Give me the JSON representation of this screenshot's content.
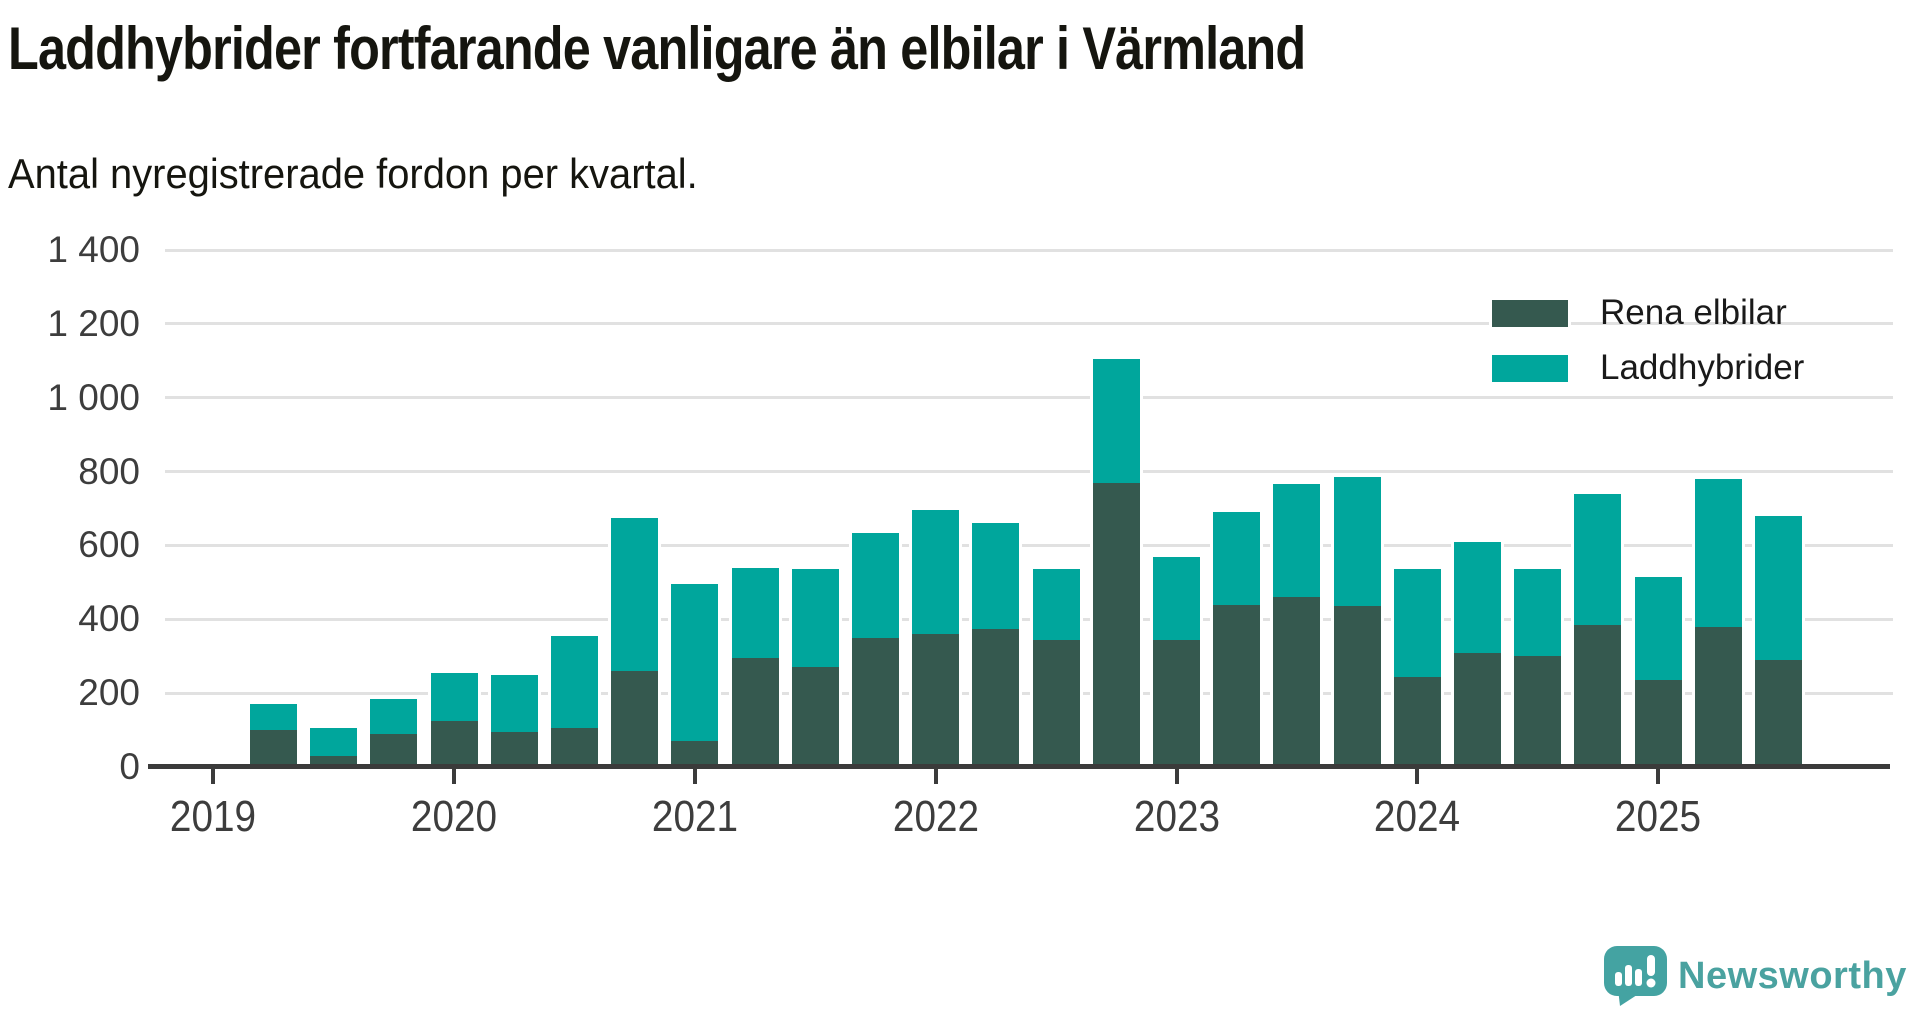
{
  "header": {
    "title": "Laddhybrider fortfarande vanligare än elbilar i Värmland",
    "subtitle": "Antal nyregistrerade fordon per kvartal."
  },
  "footer": {
    "brand": "Newsworthy"
  },
  "colors": {
    "axis": "#3b3b3b",
    "grid": "#e1e1e1",
    "title_text": "#15150f",
    "tick_text": "#3d3d3d",
    "brand": "#4aa2a0",
    "elbilar": "#35594f",
    "laddhybrider": "#00a69c"
  },
  "chart_data": {
    "type": "bar",
    "stacked": true,
    "title": "Laddhybrider fortfarande vanligare än elbilar i Värmland",
    "subtitle": "Antal nyregistrerade fordon per kvartal.",
    "xlabel": "",
    "ylabel": "",
    "categories": [
      "2019 K2",
      "2019 K3",
      "2019 K4",
      "2020 K1",
      "2020 K2",
      "2020 K3",
      "2020 K4",
      "2021 K1",
      "2021 K2",
      "2021 K3",
      "2021 K4",
      "2022 K1",
      "2022 K2",
      "2022 K3",
      "2022 K4",
      "2023 K1",
      "2023 K2",
      "2023 K3",
      "2023 K4",
      "2024 K1",
      "2024 K2",
      "2024 K3",
      "2024 K4",
      "2025 K1",
      "2025 K2",
      "2025 K3"
    ],
    "series": [
      {
        "name": "Rena elbilar",
        "color": "#35594f",
        "values": [
          100,
          30,
          90,
          125,
          95,
          105,
          260,
          70,
          295,
          270,
          350,
          360,
          375,
          345,
          770,
          345,
          440,
          460,
          435,
          245,
          310,
          300,
          385,
          235,
          380,
          290
        ]
      },
      {
        "name": "Laddhybrider",
        "color": "#00a69c",
        "values": [
          70,
          75,
          95,
          130,
          155,
          250,
          415,
          425,
          245,
          265,
          285,
          335,
          285,
          190,
          335,
          225,
          250,
          305,
          350,
          290,
          300,
          235,
          355,
          280,
          400,
          390
        ]
      }
    ],
    "totals": [
      170,
      105,
      185,
      255,
      250,
      355,
      675,
      495,
      540,
      535,
      635,
      695,
      660,
      535,
      1105,
      570,
      690,
      765,
      785,
      535,
      610,
      535,
      740,
      515,
      780,
      680
    ],
    "ylim": [
      0,
      1400
    ],
    "yticks": [
      0,
      200,
      400,
      600,
      800,
      1000,
      1200,
      1400
    ],
    "ytick_labels": [
      "0",
      "200",
      "400",
      "600",
      "800",
      "1 000",
      "1 200",
      "1 400"
    ],
    "year_ticks": [
      "2019",
      "2020",
      "2021",
      "2022",
      "2023",
      "2024",
      "2025"
    ],
    "grid": true,
    "legend_position": "top-right"
  }
}
